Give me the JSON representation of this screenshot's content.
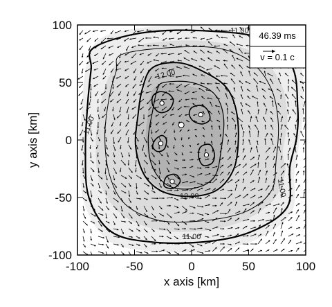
{
  "chart_data": {
    "type": "contour",
    "xlabel": "x axis [km]",
    "ylabel": "y axis [km]",
    "xlim": [
      -100,
      100
    ],
    "ylim": [
      -100,
      100
    ],
    "xticks": [
      -100,
      -50,
      0,
      50,
      100
    ],
    "yticks": [
      -100,
      -50,
      0,
      50,
      100
    ],
    "time_label": "46.39 ms",
    "velocity_label": "v = 0.1 c",
    "contour_labels": [
      {
        "text": "11.00",
        "x": 42,
        "y": 93,
        "rotate": 0
      },
      {
        "text": "11.00",
        "x": -88,
        "y": 12,
        "rotate": -70
      },
      {
        "text": "11.00",
        "x": 77,
        "y": -42,
        "rotate": 80
      },
      {
        "text": "11.00",
        "x": 0,
        "y": -86,
        "rotate": 0
      },
      {
        "text": "12.00",
        "x": -22,
        "y": 55,
        "rotate": -15
      },
      {
        "text": "12.00",
        "x": -2,
        "y": -51,
        "rotate": 0
      }
    ],
    "shade_levels": [
      {
        "color": "#eeeeee",
        "points": [
          [
            -80,
            88
          ],
          [
            -40,
            98
          ],
          [
            20,
            99
          ],
          [
            70,
            94
          ],
          [
            94,
            70
          ],
          [
            98,
            30
          ],
          [
            94,
            -5
          ],
          [
            90,
            -30
          ],
          [
            88,
            -62
          ],
          [
            60,
            -85
          ],
          [
            20,
            -96
          ],
          [
            -30,
            -97
          ],
          [
            -72,
            -88
          ],
          [
            -94,
            -55
          ],
          [
            -98,
            -10
          ],
          [
            -96,
            30
          ],
          [
            -92,
            65
          ]
        ]
      },
      {
        "color": "#dcdcdc",
        "points": [
          [
            -52,
            80
          ],
          [
            -18,
            86
          ],
          [
            22,
            85
          ],
          [
            56,
            75
          ],
          [
            78,
            50
          ],
          [
            84,
            18
          ],
          [
            80,
            -10
          ],
          [
            82,
            -28
          ],
          [
            72,
            -52
          ],
          [
            46,
            -70
          ],
          [
            10,
            -79
          ],
          [
            -30,
            -78
          ],
          [
            -62,
            -64
          ],
          [
            -80,
            -38
          ],
          [
            -84,
            -5
          ],
          [
            -80,
            30
          ],
          [
            -70,
            60
          ]
        ]
      },
      {
        "color": "#c6c6c6",
        "points": [
          [
            -34,
            62
          ],
          [
            -10,
            66
          ],
          [
            14,
            56
          ],
          [
            30,
            44
          ],
          [
            38,
            26
          ],
          [
            40,
            0
          ],
          [
            36,
            -24
          ],
          [
            22,
            -42
          ],
          [
            0,
            -48
          ],
          [
            -24,
            -44
          ],
          [
            -40,
            -30
          ],
          [
            -48,
            -6
          ],
          [
            -46,
            20
          ],
          [
            -42,
            44
          ]
        ]
      },
      {
        "color": "#b2b2b2",
        "points": [
          [
            -32,
            46
          ],
          [
            -8,
            48
          ],
          [
            20,
            38
          ],
          [
            28,
            20
          ],
          [
            26,
            -6
          ],
          [
            24,
            -30
          ],
          [
            6,
            -40
          ],
          [
            -18,
            -38
          ],
          [
            -34,
            -24
          ],
          [
            -40,
            -2
          ],
          [
            -38,
            24
          ]
        ]
      }
    ],
    "contour_lines": [
      {
        "width": 2.2,
        "points": [
          [
            -86,
            80
          ],
          [
            -44,
            93
          ],
          [
            10,
            95
          ],
          [
            62,
            88
          ],
          [
            88,
            64
          ],
          [
            93,
            28
          ],
          [
            92,
            2
          ],
          [
            86,
            -24
          ],
          [
            84,
            -58
          ],
          [
            54,
            -79
          ],
          [
            16,
            -88
          ],
          [
            -32,
            -89
          ],
          [
            -70,
            -80
          ],
          [
            -90,
            -50
          ],
          [
            -93,
            -8
          ],
          [
            -91,
            32
          ],
          [
            -88,
            62
          ]
        ]
      },
      {
        "width": 1.0,
        "points": [
          [
            -62,
            74
          ],
          [
            -24,
            80
          ],
          [
            22,
            80
          ],
          [
            52,
            68
          ],
          [
            70,
            44
          ],
          [
            76,
            14
          ],
          [
            74,
            -18
          ],
          [
            70,
            -44
          ],
          [
            48,
            -62
          ],
          [
            12,
            -70
          ],
          [
            -28,
            -70
          ],
          [
            -58,
            -56
          ],
          [
            -72,
            -30
          ],
          [
            -76,
            4
          ],
          [
            -72,
            38
          ],
          [
            -66,
            60
          ]
        ]
      },
      {
        "width": 2.0,
        "points": [
          [
            -34,
            63
          ],
          [
            -10,
            67
          ],
          [
            15,
            57
          ],
          [
            31,
            45
          ],
          [
            39,
            26
          ],
          [
            41,
            0
          ],
          [
            37,
            -25
          ],
          [
            23,
            -43
          ],
          [
            0,
            -49
          ],
          [
            -25,
            -45
          ],
          [
            -41,
            -31
          ],
          [
            -49,
            -6
          ],
          [
            -47,
            21
          ],
          [
            -43,
            45
          ]
        ]
      },
      {
        "width": 1.2,
        "points": [
          [
            -24,
            50
          ],
          [
            0,
            50
          ],
          [
            20,
            40
          ],
          [
            28,
            20
          ],
          [
            26,
            -8
          ],
          [
            20,
            -32
          ],
          [
            2,
            -42
          ],
          [
            -20,
            -40
          ],
          [
            -34,
            -24
          ],
          [
            -38,
            0
          ],
          [
            -34,
            26
          ],
          [
            -30,
            44
          ]
        ]
      },
      {
        "width": 1.6,
        "points": [
          [
            -34,
            38
          ],
          [
            -28,
            42
          ],
          [
            -20,
            40
          ],
          [
            -16,
            34
          ],
          [
            -20,
            26
          ],
          [
            -28,
            24
          ],
          [
            -34,
            30
          ]
        ]
      },
      {
        "width": 1.6,
        "points": [
          [
            0,
            28
          ],
          [
            8,
            30
          ],
          [
            14,
            26
          ],
          [
            16,
            18
          ],
          [
            10,
            14
          ],
          [
            2,
            16
          ],
          [
            -2,
            22
          ]
        ]
      },
      {
        "width": 1.6,
        "points": [
          [
            -32,
            0
          ],
          [
            -26,
            4
          ],
          [
            -22,
            0
          ],
          [
            -24,
            -8
          ],
          [
            -30,
            -10
          ],
          [
            -34,
            -6
          ]
        ]
      },
      {
        "width": 1.6,
        "points": [
          [
            8,
            -6
          ],
          [
            16,
            -4
          ],
          [
            20,
            -12
          ],
          [
            18,
            -20
          ],
          [
            10,
            -22
          ],
          [
            6,
            -14
          ]
        ]
      },
      {
        "width": 1.6,
        "points": [
          [
            -22,
            -32
          ],
          [
            -14,
            -30
          ],
          [
            -10,
            -36
          ],
          [
            -16,
            -42
          ],
          [
            -24,
            -40
          ]
        ]
      }
    ],
    "spots": [
      {
        "x": -26,
        "y": 32,
        "r": 2
      },
      {
        "x": 8,
        "y": 22,
        "r": 2
      },
      {
        "x": -9,
        "y": 13,
        "r": 2.5
      },
      {
        "x": -27,
        "y": -3,
        "r": 2
      },
      {
        "x": 13,
        "y": -13,
        "r": 2
      },
      {
        "x": -17,
        "y": -36,
        "r": 2
      }
    ],
    "vector_field": {
      "grid_step": 11,
      "arrow_scale": 1.0,
      "description": "rotating flow (counter-clockwise) with small inward/outward noise"
    }
  }
}
